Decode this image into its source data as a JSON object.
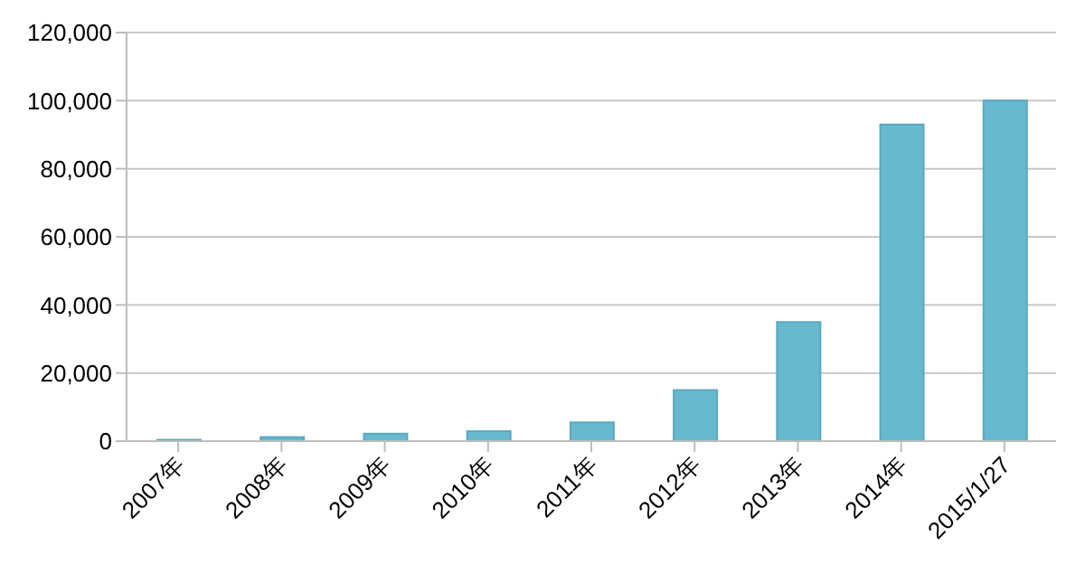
{
  "chart_data": {
    "type": "bar",
    "categories": [
      "2007年",
      "2008年",
      "2009年",
      "2010年",
      "2011年",
      "2012年",
      "2013年",
      "2014年",
      "2015/1/27"
    ],
    "values": [
      400,
      1200,
      2200,
      2900,
      5500,
      15000,
      35000,
      93000,
      100000
    ],
    "color": "#67b9d0",
    "ylim": [
      0,
      120000
    ],
    "yticks": [
      0,
      {
        "value": 20000,
        "label": "20,000"
      },
      {
        "value": 40000,
        "label": "40,000"
      },
      {
        "value": 60000,
        "label": "60,000"
      },
      {
        "value": 80000,
        "label": "80,000"
      },
      {
        "value": 100000,
        "label": "100,000"
      },
      {
        "value": 120000,
        "label": "120,000"
      }
    ],
    "grid": "y"
  }
}
